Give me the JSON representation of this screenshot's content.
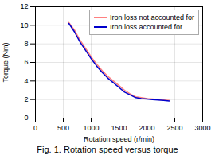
{
  "chart_data": {
    "type": "line",
    "title": "Fig. 1. Rotation speed versus torque",
    "xlabel": "Rotation speed (r/min)",
    "ylabel": "Torque (Nm)",
    "x": [
      600,
      700,
      800,
      900,
      1000,
      1100,
      1200,
      1300,
      1400,
      1500,
      1600,
      1700,
      1800,
      1900,
      2000,
      2100,
      2200,
      2300,
      2400
    ],
    "series": [
      {
        "name": "Iron loss not accounted for",
        "color": "#ff8080",
        "values": [
          10.3,
          9.5,
          8.4,
          7.5,
          6.6,
          5.8,
          5.1,
          4.5,
          4.0,
          3.5,
          3.0,
          2.6,
          2.3,
          2.2,
          2.1,
          2.05,
          2.0,
          1.95,
          1.9
        ]
      },
      {
        "name": "Iron loss accounted for",
        "color": "#0000cc",
        "values": [
          10.2,
          9.3,
          8.2,
          7.3,
          6.4,
          5.6,
          4.9,
          4.3,
          3.8,
          3.3,
          2.8,
          2.5,
          2.2,
          2.1,
          2.05,
          2.0,
          1.95,
          1.9,
          1.85
        ]
      }
    ],
    "xlim": [
      0,
      3000
    ],
    "ylim": [
      0,
      12
    ],
    "xticks": [
      0,
      500,
      1000,
      1500,
      2000,
      2500,
      3000
    ],
    "yticks": [
      0,
      2,
      4,
      6,
      8,
      10,
      12
    ],
    "grid": true,
    "legend": "upper right"
  }
}
